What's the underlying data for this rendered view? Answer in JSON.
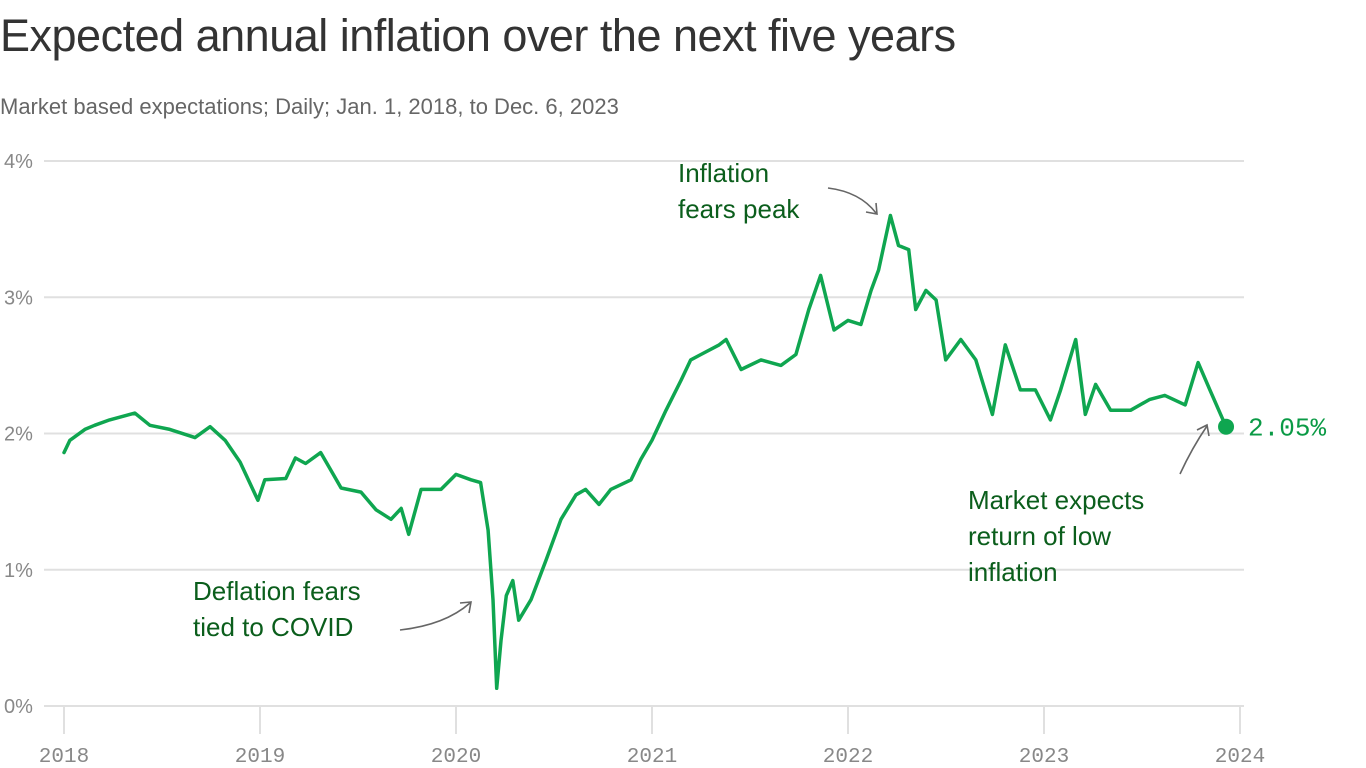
{
  "title": "Expected annual inflation over the next five years",
  "subtitle": "Market based expectations; Daily; Jan. 1, 2018, to Dec. 6, 2023",
  "chart_data": {
    "type": "line",
    "title": "Expected annual inflation over the next five years",
    "subtitle": "Market based expectations; Daily; Jan. 1, 2018, to Dec. 6, 2023",
    "xlabel": "",
    "ylabel": "",
    "ylim": [
      0,
      4
    ],
    "xlim": [
      "2018-01-01",
      "2024-01-01"
    ],
    "grid": true,
    "legend": "none",
    "line_color": "#0fa650",
    "annotation_color": "#0b5e1c",
    "y_ticks": [
      "0%",
      "1%",
      "2%",
      "3%",
      "4%"
    ],
    "y_tick_values": [
      0,
      1,
      2,
      3,
      4
    ],
    "x_ticks": [
      "2018",
      "2019",
      "2020",
      "2021",
      "2022",
      "2023",
      "2024"
    ],
    "end_label": "2.05%",
    "annotations": [
      {
        "lines": [
          "Inflation",
          "fears peak"
        ],
        "date": "2022-03-21",
        "value": 3.6
      },
      {
        "lines": [
          "Deflation fears",
          "tied to COVID"
        ],
        "date": "2020-03-17",
        "value": 0.13
      },
      {
        "lines": [
          "Market expects",
          "return of low",
          "inflation"
        ],
        "date": "2023-12-06",
        "value": 2.05
      }
    ],
    "series": [
      {
        "points": [
          [
            "2018-01-01",
            1.86
          ],
          [
            "2018-01-12",
            1.95
          ],
          [
            "2018-02-09",
            2.03
          ],
          [
            "2018-02-27",
            2.06
          ],
          [
            "2018-03-27",
            2.1
          ],
          [
            "2018-05-13",
            2.15
          ],
          [
            "2018-06-10",
            2.06
          ],
          [
            "2018-07-17",
            2.03
          ],
          [
            "2018-09-02",
            1.97
          ],
          [
            "2018-09-30",
            2.05
          ],
          [
            "2018-10-28",
            1.95
          ],
          [
            "2018-11-25",
            1.79
          ],
          [
            "2018-12-28",
            1.51
          ],
          [
            "2019-01-10",
            1.66
          ],
          [
            "2019-02-18",
            1.67
          ],
          [
            "2019-03-08",
            1.82
          ],
          [
            "2019-03-27",
            1.78
          ],
          [
            "2019-04-24",
            1.86
          ],
          [
            "2019-05-13",
            1.73
          ],
          [
            "2019-06-01",
            1.6
          ],
          [
            "2019-07-08",
            1.57
          ],
          [
            "2019-08-05",
            1.44
          ],
          [
            "2019-09-02",
            1.37
          ],
          [
            "2019-09-21",
            1.45
          ],
          [
            "2019-10-05",
            1.26
          ],
          [
            "2019-10-28",
            1.59
          ],
          [
            "2019-12-04",
            1.59
          ],
          [
            "2020-01-01",
            1.7
          ],
          [
            "2020-01-29",
            1.66
          ],
          [
            "2020-02-16",
            1.64
          ],
          [
            "2020-03-01",
            1.29
          ],
          [
            "2020-03-10",
            0.78
          ],
          [
            "2020-03-17",
            0.13
          ],
          [
            "2020-03-25",
            0.48
          ],
          [
            "2020-04-04",
            0.81
          ],
          [
            "2020-04-16",
            0.92
          ],
          [
            "2020-04-27",
            0.63
          ],
          [
            "2020-05-20",
            0.78
          ],
          [
            "2020-06-17",
            1.07
          ],
          [
            "2020-07-15",
            1.37
          ],
          [
            "2020-08-12",
            1.55
          ],
          [
            "2020-08-30",
            1.59
          ],
          [
            "2020-09-24",
            1.48
          ],
          [
            "2020-10-16",
            1.59
          ],
          [
            "2020-11-23",
            1.66
          ],
          [
            "2020-12-11",
            1.81
          ],
          [
            "2021-01-01",
            1.95
          ],
          [
            "2021-01-27",
            2.17
          ],
          [
            "2021-02-24",
            2.39
          ],
          [
            "2021-03-14",
            2.54
          ],
          [
            "2021-04-02",
            2.58
          ],
          [
            "2021-05-06",
            2.65
          ],
          [
            "2021-05-19",
            2.69
          ],
          [
            "2021-06-16",
            2.47
          ],
          [
            "2021-07-23",
            2.54
          ],
          [
            "2021-08-29",
            2.5
          ],
          [
            "2021-09-26",
            2.58
          ],
          [
            "2021-10-20",
            2.91
          ],
          [
            "2021-11-11",
            3.16
          ],
          [
            "2021-12-06",
            2.76
          ],
          [
            "2022-01-01",
            2.83
          ],
          [
            "2022-01-25",
            2.8
          ],
          [
            "2022-02-13",
            3.05
          ],
          [
            "2022-02-27",
            3.2
          ],
          [
            "2022-03-21",
            3.6
          ],
          [
            "2022-04-05",
            3.38
          ],
          [
            "2022-04-24",
            3.35
          ],
          [
            "2022-05-07",
            2.91
          ],
          [
            "2022-05-26",
            3.05
          ],
          [
            "2022-06-14",
            2.98
          ],
          [
            "2022-07-02",
            2.54
          ],
          [
            "2022-07-30",
            2.69
          ],
          [
            "2022-08-27",
            2.54
          ],
          [
            "2022-09-27",
            2.14
          ],
          [
            "2022-10-21",
            2.65
          ],
          [
            "2022-11-18",
            2.32
          ],
          [
            "2022-12-16",
            2.32
          ],
          [
            "2023-01-13",
            2.1
          ],
          [
            "2023-02-01",
            2.32
          ],
          [
            "2023-03-01",
            2.69
          ],
          [
            "2023-03-19",
            2.14
          ],
          [
            "2023-04-07",
            2.36
          ],
          [
            "2023-05-05",
            2.17
          ],
          [
            "2023-06-11",
            2.17
          ],
          [
            "2023-07-17",
            2.25
          ],
          [
            "2023-08-14",
            2.28
          ],
          [
            "2023-09-21",
            2.21
          ],
          [
            "2023-10-15",
            2.52
          ],
          [
            "2023-11-06",
            2.32
          ],
          [
            "2023-12-06",
            2.05
          ]
        ]
      }
    ]
  }
}
